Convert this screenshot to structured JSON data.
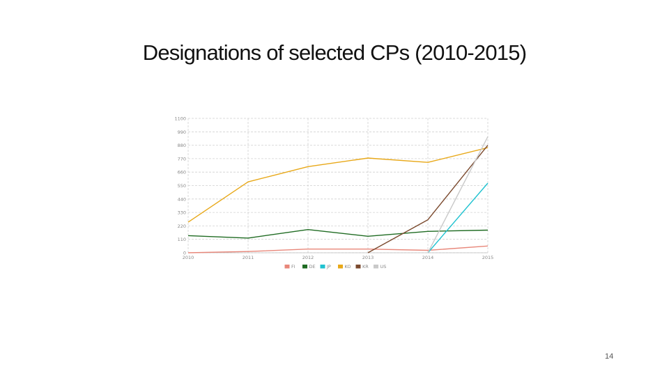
{
  "slide": {
    "title": "Designations of selected CPs (2010-2015)",
    "page_number": "14"
  },
  "chart_data": {
    "type": "line",
    "title": "",
    "xlabel": "",
    "ylabel": "",
    "x": [
      2010,
      2011,
      2012,
      2013,
      2014,
      2015
    ],
    "x_tick_labels": [
      "2010",
      "2011",
      "2012",
      "2013",
      "2014",
      "2015"
    ],
    "y_ticks": [
      0,
      110,
      220,
      330,
      440,
      550,
      660,
      770,
      880,
      990,
      1100
    ],
    "y_tick_labels": [
      "0",
      "110",
      "220",
      "330",
      "440",
      "550",
      "660",
      "770",
      "880",
      "990",
      "1100"
    ],
    "ylim": [
      0,
      1100
    ],
    "grid": true,
    "legend_position": "bottom",
    "series": [
      {
        "name": "FI",
        "color": "#e8877a",
        "values": [
          0,
          10,
          30,
          30,
          20,
          55
        ]
      },
      {
        "name": "DE",
        "color": "#1f6b22",
        "values": [
          140,
          120,
          190,
          135,
          175,
          185
        ]
      },
      {
        "name": "JP",
        "color": "#1fc2d0",
        "values": [
          null,
          null,
          null,
          null,
          0,
          570
        ]
      },
      {
        "name": "KO",
        "color": "#e8a818",
        "values": [
          250,
          580,
          705,
          775,
          740,
          860
        ]
      },
      {
        "name": "KR",
        "color": "#7b4a2e",
        "values": [
          null,
          null,
          null,
          0,
          270,
          880
        ]
      },
      {
        "name": "US",
        "color": "#c9c9c9",
        "values": [
          null,
          null,
          null,
          null,
          0,
          950
        ]
      }
    ]
  }
}
